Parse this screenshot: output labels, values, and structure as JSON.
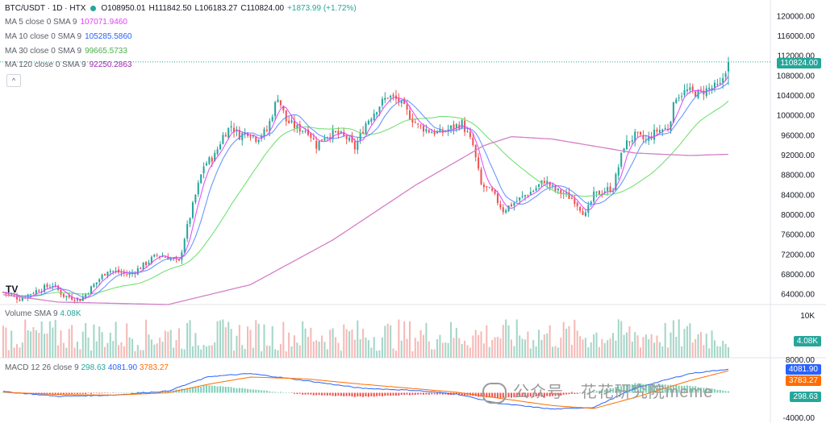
{
  "header": {
    "symbol": "BTC/USDT · 1D · HTX",
    "open": "O108950.01",
    "high": "H111842.50",
    "low": "L106183.27",
    "close": "C110824.00",
    "change": "+1873.99 (+1.72%)"
  },
  "indicators": [
    {
      "label": "MA 5 close 0 SMA 9",
      "value": "107071.9460",
      "color": "#e040fb"
    },
    {
      "label": "MA 10 close 0 SMA 9",
      "value": "105285.5860",
      "color": "#2962ff"
    },
    {
      "label": "MA 30 close 0 SMA 9",
      "value": "99665.5733",
      "color": "#4caf50"
    },
    {
      "label": "MA 120 close 0 SMA 9",
      "value": "92250.2863",
      "color": "#9c27b0"
    }
  ],
  "collapse_glyph": "^",
  "logo_text": "TV",
  "volume": {
    "label": "Volume SMA 9",
    "value": "4.08K",
    "badge": "4.08K",
    "tick_top": "10K",
    "tick_bottom": "8000.00"
  },
  "macd": {
    "label": "MACD 12 26 close 9",
    "hist": "298.63",
    "macd": "4081.90",
    "signal": "3783.27",
    "badge_macd": "4081.90",
    "badge_signal": "3783.27",
    "badge_hist": "298.63",
    "tick_bottom": "-4000.00"
  },
  "price_axis": [
    "120000.00",
    "116000.00",
    "112000.00",
    "108000.00",
    "104000.00",
    "100000.00",
    "96000.00",
    "92000.00",
    "88000.00",
    "84000.00",
    "80000.00",
    "76000.00",
    "72000.00",
    "68000.00",
    "64000.00"
  ],
  "last_price_badge": "110824.00",
  "watermark": "公众号 · 花花研究院meme",
  "colors": {
    "up": "#26a69a",
    "down": "#ef5350",
    "volume_up": "#a5d6c8",
    "volume_down": "#f6b9b7"
  },
  "chart_data": {
    "type": "candlestick",
    "ylim": [
      62000,
      122000
    ],
    "anchor_closes": [
      [
        0,
        64500
      ],
      [
        6,
        63200
      ],
      [
        12,
        64800
      ],
      [
        18,
        66000
      ],
      [
        22,
        63800
      ],
      [
        28,
        63000
      ],
      [
        34,
        66500
      ],
      [
        38,
        69000
      ],
      [
        42,
        68500
      ],
      [
        46,
        68000
      ],
      [
        50,
        69500
      ],
      [
        56,
        72000
      ],
      [
        60,
        71500
      ],
      [
        64,
        70500
      ],
      [
        66,
        75500
      ],
      [
        70,
        84000
      ],
      [
        73,
        90000
      ],
      [
        77,
        92000
      ],
      [
        80,
        96000
      ],
      [
        83,
        98000
      ],
      [
        86,
        96000
      ],
      [
        89,
        96800
      ],
      [
        92,
        95500
      ],
      [
        96,
        97000
      ],
      [
        100,
        104000
      ],
      [
        103,
        99000
      ],
      [
        107,
        97500
      ],
      [
        111,
        97000
      ],
      [
        114,
        94000
      ],
      [
        117,
        96000
      ],
      [
        121,
        96500
      ],
      [
        125,
        95500
      ],
      [
        128,
        93500
      ],
      [
        132,
        98500
      ],
      [
        136,
        101500
      ],
      [
        140,
        104000
      ],
      [
        144,
        103000
      ],
      [
        148,
        100000
      ],
      [
        151,
        98000
      ],
      [
        155,
        97000
      ],
      [
        159,
        96500
      ],
      [
        163,
        97500
      ],
      [
        167,
        98500
      ],
      [
        171,
        94000
      ],
      [
        174,
        86000
      ],
      [
        178,
        84500
      ],
      [
        182,
        81000
      ],
      [
        186,
        82500
      ],
      [
        190,
        84000
      ],
      [
        193,
        85000
      ],
      [
        197,
        87000
      ],
      [
        201,
        85000
      ],
      [
        205,
        84000
      ],
      [
        208,
        83000
      ],
      [
        212,
        80000
      ],
      [
        215,
        84000
      ],
      [
        219,
        85000
      ],
      [
        222,
        85500
      ],
      [
        226,
        94000
      ],
      [
        230,
        96000
      ],
      [
        234,
        95000
      ],
      [
        238,
        97000
      ],
      [
        242,
        97500
      ],
      [
        245,
        104000
      ],
      [
        249,
        105000
      ],
      [
        253,
        104500
      ],
      [
        257,
        105500
      ],
      [
        261,
        106000
      ],
      [
        264,
        111000
      ]
    ],
    "ma120": [
      [
        0,
        64000
      ],
      [
        20,
        62500
      ],
      [
        60,
        62000
      ],
      [
        90,
        66000
      ],
      [
        120,
        75000
      ],
      [
        150,
        86000
      ],
      [
        175,
        94000
      ],
      [
        185,
        95800
      ],
      [
        200,
        95300
      ],
      [
        230,
        92500
      ],
      [
        250,
        92000
      ],
      [
        264,
        92250
      ]
    ],
    "macd_anchor": [
      [
        0,
        200
      ],
      [
        20,
        -600
      ],
      [
        40,
        -400
      ],
      [
        60,
        300
      ],
      [
        75,
        2800
      ],
      [
        90,
        3300
      ],
      [
        110,
        2100
      ],
      [
        130,
        800
      ],
      [
        150,
        400
      ],
      [
        165,
        -200
      ],
      [
        180,
        -1800
      ],
      [
        200,
        -2800
      ],
      [
        215,
        -2500
      ],
      [
        230,
        800
      ],
      [
        250,
        3300
      ],
      [
        264,
        4082
      ]
    ],
    "signal_anchor": [
      [
        0,
        100
      ],
      [
        20,
        -300
      ],
      [
        40,
        -400
      ],
      [
        60,
        0
      ],
      [
        75,
        1500
      ],
      [
        90,
        2700
      ],
      [
        110,
        2400
      ],
      [
        130,
        1500
      ],
      [
        150,
        700
      ],
      [
        165,
        100
      ],
      [
        180,
        -900
      ],
      [
        200,
        -2200
      ],
      [
        215,
        -2700
      ],
      [
        230,
        -800
      ],
      [
        250,
        2100
      ],
      [
        264,
        3783
      ]
    ]
  }
}
